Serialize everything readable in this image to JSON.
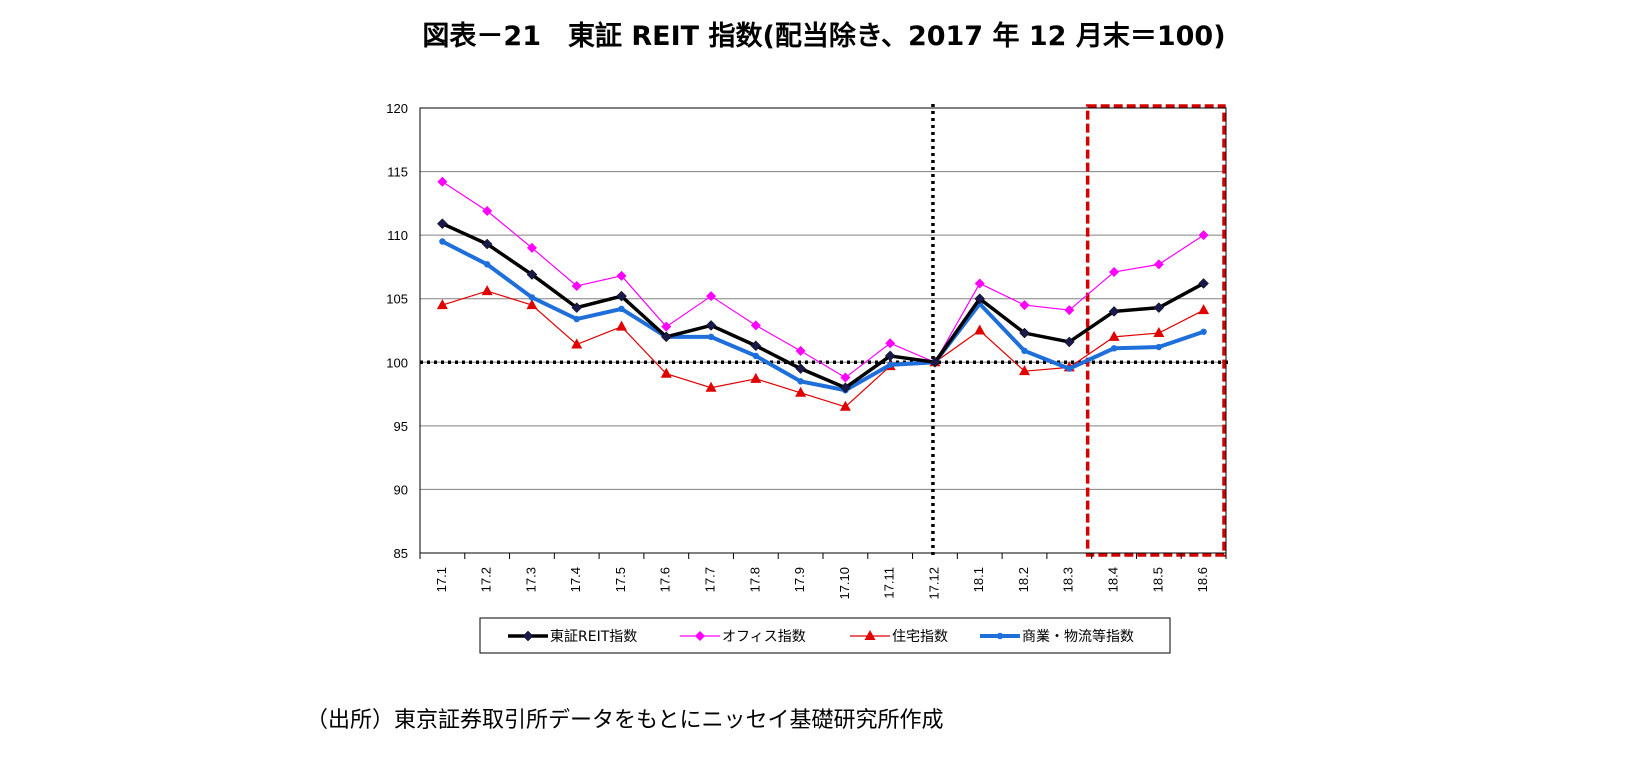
{
  "title": "図表－21　東証 REIT 指数(配当除き、2017 年 12 月末＝100)",
  "source": "（出所）東京証券取引所データをもとにニッセイ基礎研究所作成",
  "chart_data": {
    "type": "line",
    "categories": [
      "17.1",
      "17.2",
      "17.3",
      "17.4",
      "17.5",
      "17.6",
      "17.7",
      "17.8",
      "17.9",
      "17.10",
      "17.11",
      "17.12",
      "18.1",
      "18.2",
      "18.3",
      "18.4",
      "18.5",
      "18.6"
    ],
    "ylim": [
      85,
      120
    ],
    "yticks": [
      85,
      90,
      95,
      100,
      105,
      110,
      115,
      120
    ],
    "grid": true,
    "reference_line_y": 100,
    "reference_line_x_category": "17.12",
    "highlight_box_categories": [
      "18.4",
      "18.6"
    ],
    "legend_position": "bottom",
    "series": [
      {
        "name": "東証REIT指数",
        "color": "#000000",
        "marker": "diamond-dark",
        "values": [
          110.9,
          109.3,
          106.9,
          104.3,
          105.2,
          102.0,
          102.9,
          101.3,
          99.5,
          98.0,
          100.5,
          100.0,
          105.0,
          102.3,
          101.6,
          104.0,
          104.3,
          106.2
        ]
      },
      {
        "name": "オフィス指数",
        "color": "#ff00ff",
        "marker": "diamond",
        "values": [
          114.2,
          111.9,
          109.0,
          106.0,
          106.8,
          102.8,
          105.2,
          102.9,
          100.9,
          98.8,
          101.5,
          100.0,
          106.2,
          104.5,
          104.1,
          107.1,
          107.7,
          110.0
        ]
      },
      {
        "name": "住宅指数",
        "color": "#e00000",
        "marker": "triangle",
        "values": [
          104.5,
          105.6,
          104.5,
          101.4,
          102.8,
          99.1,
          98.0,
          98.7,
          97.6,
          96.5,
          99.7,
          100.0,
          102.5,
          99.3,
          99.6,
          102.0,
          102.3,
          104.1
        ]
      },
      {
        "name": "商業・物流等指数",
        "color": "#1f6fdb",
        "marker": "circle",
        "values": [
          109.5,
          107.7,
          105.1,
          103.4,
          104.2,
          102.0,
          102.0,
          100.5,
          98.5,
          97.8,
          99.8,
          100.0,
          104.6,
          100.9,
          99.5,
          101.1,
          101.2,
          102.4
        ]
      }
    ]
  }
}
